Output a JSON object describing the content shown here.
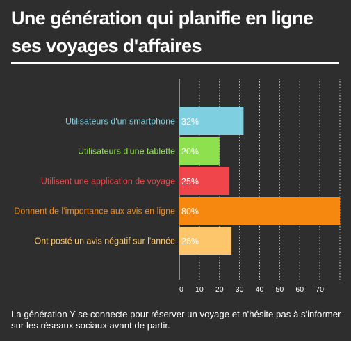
{
  "header": {
    "title_line1": "Une génération qui planifie en ligne",
    "title_line2": "ses voyages d'affaires"
  },
  "caption": "La génération Y se connecte pour réserver un voyage et n'hésite pas à s'informer sur les réseaux sociaux avant de partir.",
  "chart_data": {
    "type": "bar",
    "orientation": "horizontal",
    "categories": [
      "Utilisateurs d'un smartphone",
      "Utilisateurs d'une tablette",
      "Utilisent une application de voyage",
      "Donnent de l'importance aux avis en ligne",
      "Ont posté un avis négatif sur l'année"
    ],
    "values": [
      32,
      20,
      25,
      80,
      26
    ],
    "value_labels": [
      "32%",
      "20%",
      "25%",
      "80%",
      "26%"
    ],
    "colors": [
      "#7ecfe0",
      "#8ee04e",
      "#f0454a",
      "#f6870f",
      "#fdc66a"
    ],
    "xlim": [
      0,
      80
    ],
    "xticks": [
      0,
      10,
      20,
      30,
      40,
      50,
      60,
      70
    ],
    "grid": true,
    "grid_style": "dotted-vertical",
    "legend": "none"
  }
}
